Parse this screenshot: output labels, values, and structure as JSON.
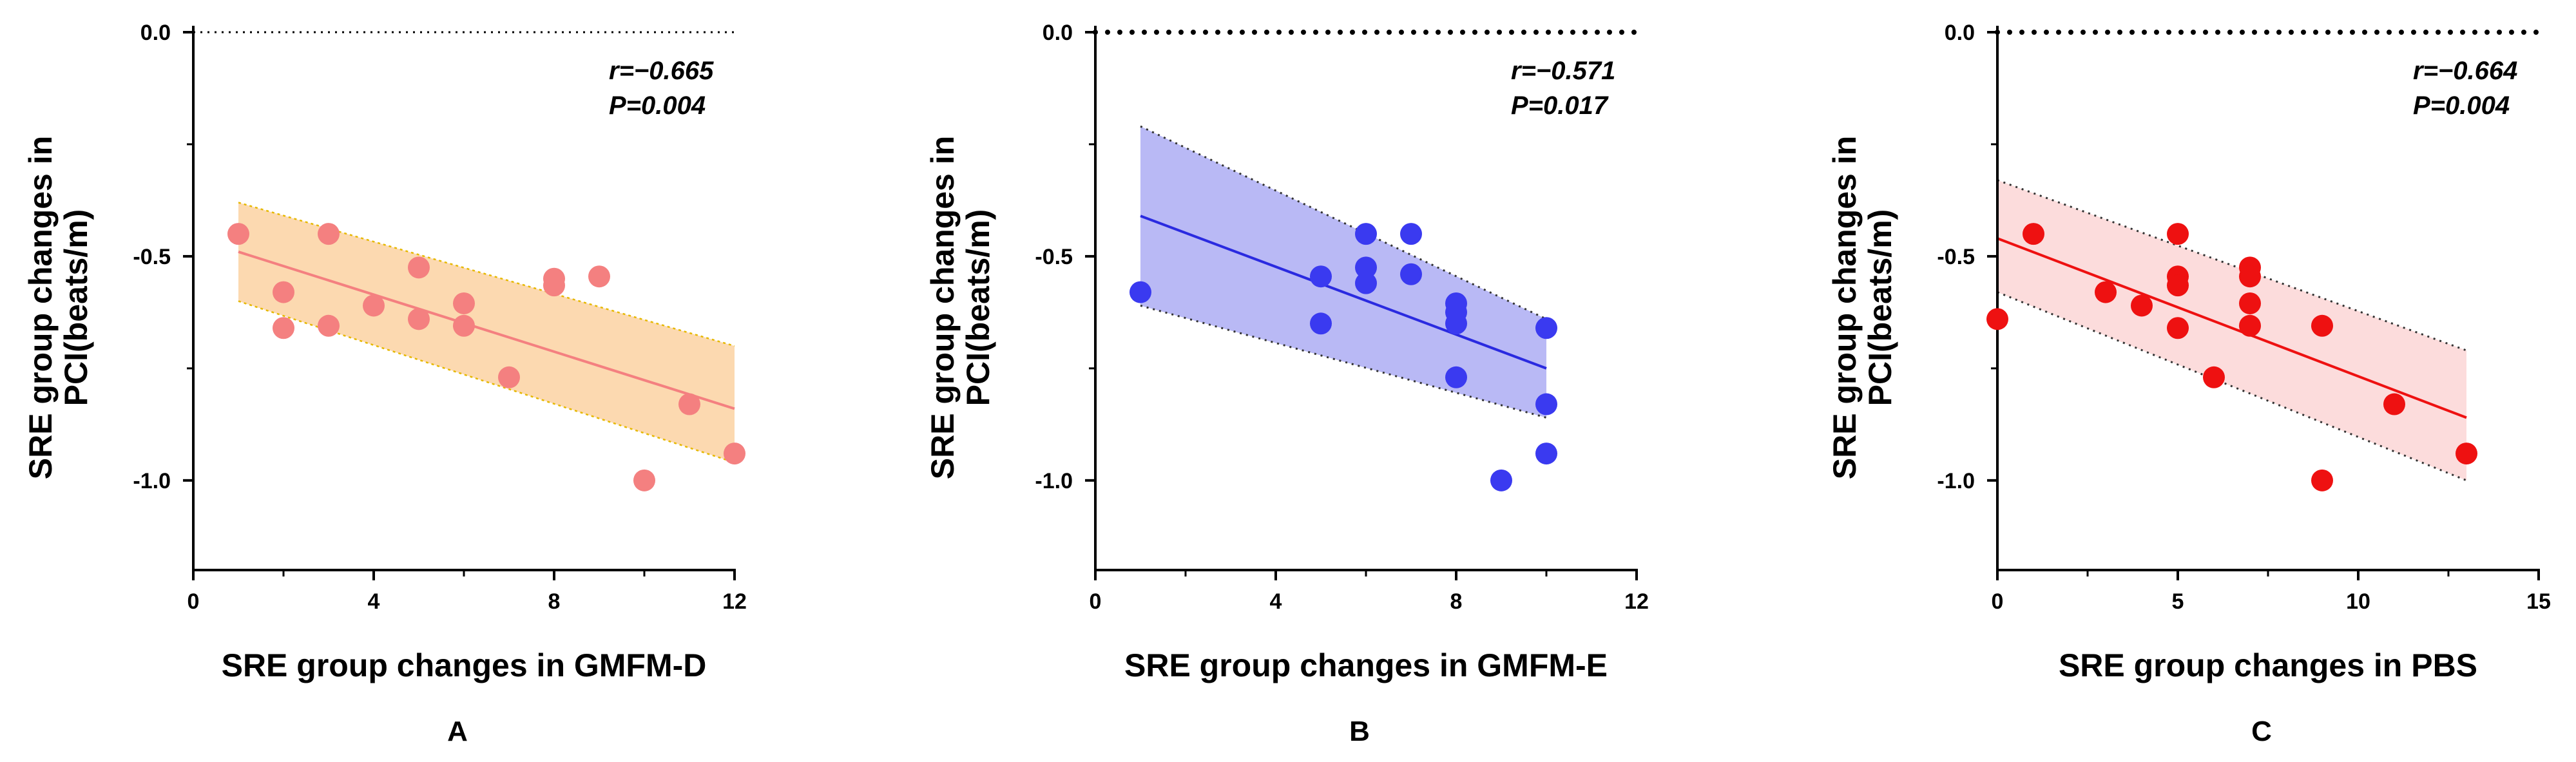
{
  "chart_data": [
    {
      "type": "scatter",
      "panel_label": "A",
      "xlabel": "SRE group changes in GMFM-D",
      "ylabel_lines": [
        "SRE group changes in",
        "PCI(beats/m)"
      ],
      "xlim": [
        0,
        12
      ],
      "ylim": [
        -1.2,
        0.0
      ],
      "xticks": [
        0,
        4,
        8,
        12
      ],
      "xtick_labels": [
        "0",
        "4",
        "8",
        "12"
      ],
      "yticks": [
        0.0,
        -0.5,
        -1.0
      ],
      "ytick_labels": [
        "0.0",
        "-0.5",
        "-1.0"
      ],
      "annotation_r": "r=−0.665",
      "annotation_p": "P=0.004",
      "point_color": "#f48080",
      "line_color": "#f48080",
      "band_fill": "#fcd9b0",
      "band_stroke": "#e6b800",
      "zero_line_style": "dotted-fine",
      "points": [
        {
          "x": 1,
          "y": -0.45
        },
        {
          "x": 2,
          "y": -0.58
        },
        {
          "x": 2,
          "y": -0.66
        },
        {
          "x": 3,
          "y": -0.45
        },
        {
          "x": 3,
          "y": -0.655
        },
        {
          "x": 4,
          "y": -0.61
        },
        {
          "x": 5,
          "y": -0.525
        },
        {
          "x": 5,
          "y": -0.64
        },
        {
          "x": 6,
          "y": -0.605
        },
        {
          "x": 6,
          "y": -0.655
        },
        {
          "x": 7,
          "y": -0.77
        },
        {
          "x": 8,
          "y": -0.55
        },
        {
          "x": 8,
          "y": -0.565
        },
        {
          "x": 9,
          "y": -0.545
        },
        {
          "x": 10,
          "y": -1.0
        },
        {
          "x": 11,
          "y": -0.83
        },
        {
          "x": 12,
          "y": -0.94
        }
      ],
      "fit": {
        "x": [
          1,
          12
        ],
        "y": [
          -0.49,
          -0.84
        ]
      },
      "band": {
        "x": [
          1,
          12
        ],
        "upper": [
          -0.38,
          -0.7
        ],
        "lower": [
          -0.6,
          -0.96
        ]
      }
    },
    {
      "type": "scatter",
      "panel_label": "B",
      "xlabel": "SRE group changes in GMFM-E",
      "ylabel_lines": [
        "SRE group changes in",
        "PCI(beats/m)"
      ],
      "xlim": [
        0,
        12
      ],
      "ylim": [
        -1.2,
        0.0
      ],
      "xticks": [
        0,
        4,
        8,
        12
      ],
      "xtick_labels": [
        "0",
        "4",
        "8",
        "12"
      ],
      "yticks": [
        0.0,
        -0.5,
        -1.0
      ],
      "ytick_labels": [
        "0.0",
        "-0.5",
        "-1.0"
      ],
      "annotation_r": "r=−0.571",
      "annotation_p": "P=0.017",
      "point_color": "#3a3af0",
      "line_color": "#2a2ae0",
      "band_fill": "#b9b9f5",
      "band_stroke": "#333333",
      "zero_line_style": "dotted-heavy",
      "points": [
        {
          "x": 1,
          "y": -0.58
        },
        {
          "x": 5,
          "y": -0.545
        },
        {
          "x": 5,
          "y": -0.65
        },
        {
          "x": 6,
          "y": -0.45
        },
        {
          "x": 6,
          "y": -0.525
        },
        {
          "x": 6,
          "y": -0.56
        },
        {
          "x": 7,
          "y": -0.45
        },
        {
          "x": 7,
          "y": -0.54
        },
        {
          "x": 8,
          "y": -0.605
        },
        {
          "x": 8,
          "y": -0.625
        },
        {
          "x": 8,
          "y": -0.65
        },
        {
          "x": 8,
          "y": -0.77
        },
        {
          "x": 9,
          "y": -1.0
        },
        {
          "x": 10,
          "y": -0.66
        },
        {
          "x": 10,
          "y": -0.83
        },
        {
          "x": 10,
          "y": -0.94
        }
      ],
      "fit": {
        "x": [
          1,
          10
        ],
        "y": [
          -0.41,
          -0.75
        ]
      },
      "band": {
        "x": [
          1,
          10
        ],
        "upper": [
          -0.21,
          -0.64
        ],
        "lower": [
          -0.61,
          -0.86
        ]
      }
    },
    {
      "type": "scatter",
      "panel_label": "C",
      "xlabel": "SRE group changes in PBS",
      "ylabel_lines": [
        "SRE group changes in",
        "PCI(beats/m)"
      ],
      "xlim": [
        0,
        15
      ],
      "ylim": [
        -1.2,
        0.0
      ],
      "xticks": [
        0,
        5,
        10,
        15
      ],
      "xtick_labels": [
        "0",
        "5",
        "10",
        "15"
      ],
      "yticks": [
        0.0,
        -0.5,
        -1.0
      ],
      "ytick_labels": [
        "0.0",
        "-0.5",
        "-1.0"
      ],
      "annotation_r": "r=−0.664",
      "annotation_p": "P=0.004",
      "point_color": "#ee1111",
      "line_color": "#ee1111",
      "band_fill": "#fcdcdc",
      "band_stroke": "#333333",
      "zero_line_style": "dotted-heavy",
      "points": [
        {
          "x": 0,
          "y": -0.64
        },
        {
          "x": 1,
          "y": -0.45
        },
        {
          "x": 3,
          "y": -0.58
        },
        {
          "x": 4,
          "y": -0.61
        },
        {
          "x": 5,
          "y": -0.45
        },
        {
          "x": 5,
          "y": -0.545
        },
        {
          "x": 5,
          "y": -0.565
        },
        {
          "x": 5,
          "y": -0.66
        },
        {
          "x": 6,
          "y": -0.77
        },
        {
          "x": 7,
          "y": -0.525
        },
        {
          "x": 7,
          "y": -0.545
        },
        {
          "x": 7,
          "y": -0.605
        },
        {
          "x": 7,
          "y": -0.655
        },
        {
          "x": 9,
          "y": -0.655
        },
        {
          "x": 9,
          "y": -1.0
        },
        {
          "x": 11,
          "y": -0.83
        },
        {
          "x": 13,
          "y": -0.94
        }
      ],
      "fit": {
        "x": [
          0,
          13
        ],
        "y": [
          -0.46,
          -0.86
        ]
      },
      "band": {
        "x": [
          0,
          13
        ],
        "upper": [
          -0.33,
          -0.71
        ],
        "lower": [
          -0.58,
          -1.0
        ]
      }
    }
  ]
}
